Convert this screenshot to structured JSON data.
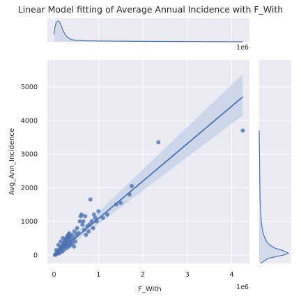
{
  "chart_data": {
    "type": "scatter",
    "title": "Linear Model fitting of Average Annual Incidence with F_With",
    "xlabel": "F_With",
    "ylabel": "Avg_Ann_Incidence",
    "x_offset_label": "1e6",
    "top_offset_label": "1e6",
    "xlim": [
      -0.15,
      4.4
    ],
    "ylim": [
      -250,
      5800
    ],
    "xticks": [
      0,
      1,
      2,
      3,
      4
    ],
    "yticks": [
      0,
      1000,
      2000,
      3000,
      4000,
      5000
    ],
    "grid": true,
    "colors": {
      "point": "#4c72b0",
      "line": "#4c72b0",
      "band": "#c7d3e8",
      "axes_bg": "#eaeaf2",
      "grid": "#ffffff"
    },
    "regression": {
      "x": [
        0.0,
        4.25
      ],
      "y": [
        -30,
        4700
      ],
      "ci_low": [
        -75,
        4150
      ],
      "ci_high": [
        15,
        5380
      ]
    },
    "points": [
      [
        0.02,
        5
      ],
      [
        0.03,
        10
      ],
      [
        0.04,
        20
      ],
      [
        0.05,
        30
      ],
      [
        0.06,
        60
      ],
      [
        0.07,
        80
      ],
      [
        0.08,
        50
      ],
      [
        0.09,
        100
      ],
      [
        0.1,
        120
      ],
      [
        0.11,
        90
      ],
      [
        0.12,
        150
      ],
      [
        0.13,
        180
      ],
      [
        0.14,
        140
      ],
      [
        0.15,
        200
      ],
      [
        0.16,
        230
      ],
      [
        0.17,
        170
      ],
      [
        0.18,
        260
      ],
      [
        0.19,
        220
      ],
      [
        0.2,
        300
      ],
      [
        0.21,
        250
      ],
      [
        0.22,
        350
      ],
      [
        0.23,
        280
      ],
      [
        0.24,
        400
      ],
      [
        0.25,
        330
      ],
      [
        0.26,
        450
      ],
      [
        0.27,
        380
      ],
      [
        0.28,
        500
      ],
      [
        0.29,
        420
      ],
      [
        0.3,
        560
      ],
      [
        0.31,
        470
      ],
      [
        0.32,
        600
      ],
      [
        0.33,
        520
      ],
      [
        0.34,
        640
      ],
      [
        0.35,
        400
      ],
      [
        0.36,
        550
      ],
      [
        0.38,
        450
      ],
      [
        0.4,
        600
      ],
      [
        0.42,
        350
      ],
      [
        0.44,
        500
      ],
      [
        0.46,
        700
      ],
      [
        0.48,
        400
      ],
      [
        0.5,
        600
      ],
      [
        0.52,
        800
      ],
      [
        0.55,
        650
      ],
      [
        0.58,
        1000
      ],
      [
        0.6,
        1150
      ],
      [
        0.62,
        1200
      ],
      [
        0.64,
        900
      ],
      [
        0.66,
        1000
      ],
      [
        0.68,
        750
      ],
      [
        0.7,
        1150
      ],
      [
        0.72,
        600
      ],
      [
        0.75,
        850
      ],
      [
        0.78,
        700
      ],
      [
        0.8,
        900
      ],
      [
        0.82,
        1650
      ],
      [
        0.85,
        1000
      ],
      [
        0.88,
        800
      ],
      [
        0.9,
        1200
      ],
      [
        0.93,
        1100
      ],
      [
        0.96,
        1000
      ],
      [
        1.0,
        1300
      ],
      [
        1.1,
        1100
      ],
      [
        1.2,
        1200
      ],
      [
        1.4,
        1500
      ],
      [
        1.5,
        1550
      ],
      [
        1.7,
        1800
      ],
      [
        1.75,
        2050
      ],
      [
        2.35,
        3350
      ],
      [
        4.25,
        3700
      ],
      [
        0.05,
        150
      ],
      [
        0.1,
        300
      ],
      [
        0.15,
        400
      ],
      [
        0.2,
        500
      ],
      [
        0.25,
        250
      ],
      [
        0.3,
        350
      ],
      [
        0.35,
        300
      ],
      [
        0.12,
        50
      ],
      [
        0.18,
        100
      ],
      [
        0.22,
        150
      ],
      [
        0.28,
        200
      ],
      [
        0.33,
        250
      ],
      [
        0.38,
        300
      ],
      [
        0.45,
        250
      ]
    ],
    "top_marginal_density": {
      "x": [
        0.0,
        0.02,
        0.05,
        0.1,
        0.15,
        0.2,
        0.25,
        0.3,
        0.35,
        0.4,
        0.5,
        0.7,
        1.0,
        1.5,
        2.0,
        3.0,
        4.25
      ],
      "density": [
        0.35,
        0.7,
        0.95,
        1.0,
        0.85,
        0.55,
        0.35,
        0.22,
        0.15,
        0.1,
        0.07,
        0.05,
        0.04,
        0.03,
        0.02,
        0.01,
        0.0
      ]
    },
    "right_marginal_density": {
      "y": [
        -250,
        -100,
        0,
        50,
        100,
        150,
        200,
        300,
        400,
        600,
        800,
        1000,
        1300,
        1700,
        2200,
        3000,
        3700
      ],
      "density": [
        0.05,
        0.3,
        0.85,
        1.0,
        0.9,
        0.75,
        0.55,
        0.35,
        0.25,
        0.15,
        0.1,
        0.07,
        0.05,
        0.03,
        0.02,
        0.01,
        0.0
      ]
    }
  }
}
